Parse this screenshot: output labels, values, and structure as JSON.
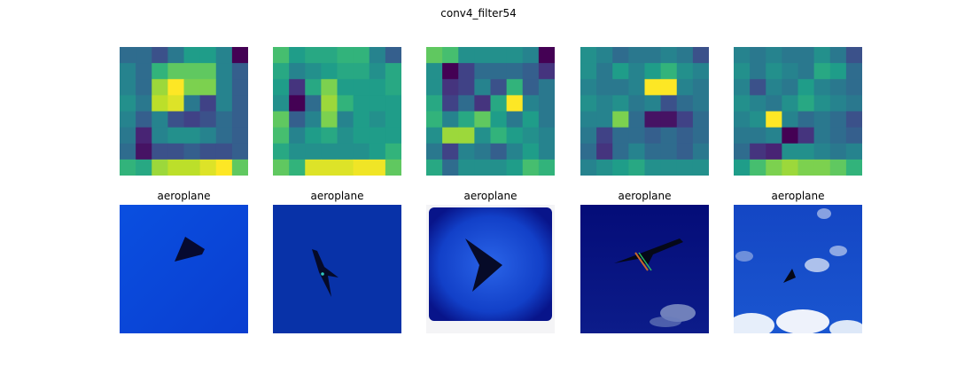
{
  "figure": {
    "title": "conv4_filter54"
  },
  "chart_data": {
    "type": "heatmap",
    "title": "conv4_filter54",
    "colormap": "viridis",
    "value_range": [
      0,
      1
    ],
    "panels": [
      {
        "label": "aeroplane",
        "grid": [
          [
            0.35,
            0.35,
            0.25,
            0.4,
            0.55,
            0.55,
            0.45,
            0.0
          ],
          [
            0.45,
            0.35,
            0.65,
            0.75,
            0.75,
            0.75,
            0.45,
            0.3
          ],
          [
            0.45,
            0.35,
            0.85,
            1.0,
            0.8,
            0.8,
            0.45,
            0.3
          ],
          [
            0.5,
            0.4,
            0.9,
            0.95,
            0.4,
            0.2,
            0.45,
            0.3
          ],
          [
            0.45,
            0.3,
            0.45,
            0.25,
            0.2,
            0.25,
            0.35,
            0.3
          ],
          [
            0.4,
            0.1,
            0.45,
            0.5,
            0.5,
            0.45,
            0.35,
            0.3
          ],
          [
            0.35,
            0.05,
            0.25,
            0.25,
            0.3,
            0.25,
            0.25,
            0.3
          ],
          [
            0.65,
            0.6,
            0.85,
            0.9,
            0.9,
            0.95,
            1.0,
            0.75
          ]
        ]
      },
      {
        "label": "aeroplane",
        "grid": [
          [
            0.7,
            0.55,
            0.6,
            0.6,
            0.65,
            0.65,
            0.45,
            0.3
          ],
          [
            0.6,
            0.45,
            0.5,
            0.55,
            0.6,
            0.6,
            0.5,
            0.6
          ],
          [
            0.55,
            0.15,
            0.6,
            0.8,
            0.55,
            0.55,
            0.55,
            0.6
          ],
          [
            0.5,
            0.0,
            0.35,
            0.85,
            0.65,
            0.55,
            0.55,
            0.55
          ],
          [
            0.75,
            0.3,
            0.45,
            0.8,
            0.45,
            0.55,
            0.5,
            0.55
          ],
          [
            0.7,
            0.45,
            0.55,
            0.6,
            0.5,
            0.55,
            0.55,
            0.55
          ],
          [
            0.6,
            0.5,
            0.5,
            0.5,
            0.5,
            0.5,
            0.55,
            0.65
          ],
          [
            0.75,
            0.65,
            0.95,
            0.95,
            0.95,
            0.98,
            0.98,
            0.75
          ]
        ]
      },
      {
        "label": "aeroplane",
        "grid": [
          [
            0.75,
            0.7,
            0.5,
            0.5,
            0.5,
            0.5,
            0.45,
            0.0
          ],
          [
            0.5,
            0.0,
            0.2,
            0.35,
            0.35,
            0.35,
            0.3,
            0.15
          ],
          [
            0.5,
            0.15,
            0.2,
            0.45,
            0.25,
            0.65,
            0.3,
            0.4
          ],
          [
            0.6,
            0.2,
            0.35,
            0.15,
            0.6,
            1.0,
            0.45,
            0.4
          ],
          [
            0.65,
            0.45,
            0.6,
            0.75,
            0.55,
            0.4,
            0.55,
            0.4
          ],
          [
            0.5,
            0.85,
            0.85,
            0.5,
            0.65,
            0.55,
            0.5,
            0.45
          ],
          [
            0.4,
            0.2,
            0.45,
            0.4,
            0.3,
            0.45,
            0.55,
            0.45
          ],
          [
            0.6,
            0.35,
            0.5,
            0.5,
            0.5,
            0.55,
            0.7,
            0.65
          ]
        ]
      },
      {
        "label": "aeroplane",
        "grid": [
          [
            0.5,
            0.45,
            0.35,
            0.4,
            0.4,
            0.45,
            0.4,
            0.25
          ],
          [
            0.5,
            0.4,
            0.55,
            0.45,
            0.55,
            0.65,
            0.5,
            0.45
          ],
          [
            0.45,
            0.4,
            0.4,
            0.45,
            1.0,
            1.0,
            0.45,
            0.4
          ],
          [
            0.5,
            0.45,
            0.5,
            0.4,
            0.45,
            0.25,
            0.35,
            0.4
          ],
          [
            0.45,
            0.45,
            0.8,
            0.35,
            0.05,
            0.05,
            0.2,
            0.35
          ],
          [
            0.4,
            0.2,
            0.35,
            0.35,
            0.3,
            0.35,
            0.3,
            0.35
          ],
          [
            0.35,
            0.15,
            0.35,
            0.45,
            0.35,
            0.35,
            0.3,
            0.4
          ],
          [
            0.45,
            0.5,
            0.55,
            0.6,
            0.5,
            0.5,
            0.5,
            0.5
          ]
        ]
      },
      {
        "label": "aeroplane",
        "grid": [
          [
            0.45,
            0.4,
            0.45,
            0.4,
            0.4,
            0.5,
            0.4,
            0.25
          ],
          [
            0.5,
            0.4,
            0.5,
            0.45,
            0.4,
            0.6,
            0.55,
            0.35
          ],
          [
            0.45,
            0.25,
            0.45,
            0.4,
            0.55,
            0.45,
            0.4,
            0.35
          ],
          [
            0.5,
            0.45,
            0.4,
            0.5,
            0.6,
            0.5,
            0.45,
            0.4
          ],
          [
            0.45,
            0.5,
            1.0,
            0.45,
            0.35,
            0.4,
            0.35,
            0.25
          ],
          [
            0.4,
            0.4,
            0.45,
            0.0,
            0.15,
            0.4,
            0.35,
            0.3
          ],
          [
            0.35,
            0.15,
            0.1,
            0.5,
            0.5,
            0.45,
            0.4,
            0.45
          ],
          [
            0.55,
            0.7,
            0.8,
            0.85,
            0.8,
            0.8,
            0.75,
            0.65
          ]
        ]
      }
    ]
  }
}
